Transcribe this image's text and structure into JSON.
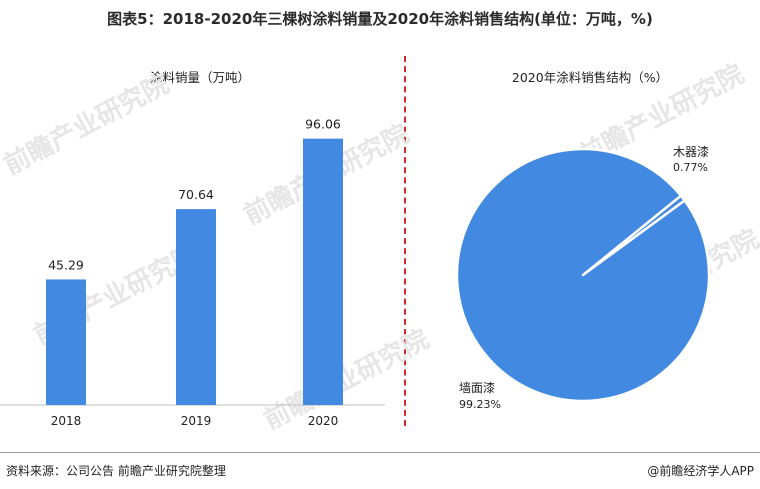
{
  "title": "图表5：2018-2020年三棵树涂料销量及2020年涂料销售结构(单位：万吨，%)",
  "watermark": "前瞻产业研究院",
  "footer": {
    "source": "资料来源：公司公告 前瞻产业研究院整理",
    "credit": "@前瞻经济学人APP"
  },
  "colors": {
    "bar": "#4189e1",
    "pie": "#4189e1",
    "divider": "#d22b2b"
  },
  "chart_data": [
    {
      "type": "bar",
      "title": "涂料销量（万吨）",
      "categories": [
        "2018",
        "2019",
        "2020"
      ],
      "values": [
        45.29,
        70.64,
        96.06
      ],
      "value_labels": [
        "45.29",
        "70.64",
        "96.06"
      ],
      "ylim": [
        0,
        110
      ],
      "grid": false,
      "legend": "none"
    },
    {
      "type": "pie",
      "title": "2020年涂料销售结构（%）",
      "slices": [
        {
          "label": "木器漆",
          "value": 0.77,
          "value_label": "0.77%"
        },
        {
          "label": "墙面漆",
          "value": 99.23,
          "value_label": "99.23%"
        }
      ],
      "legend": "none"
    }
  ]
}
